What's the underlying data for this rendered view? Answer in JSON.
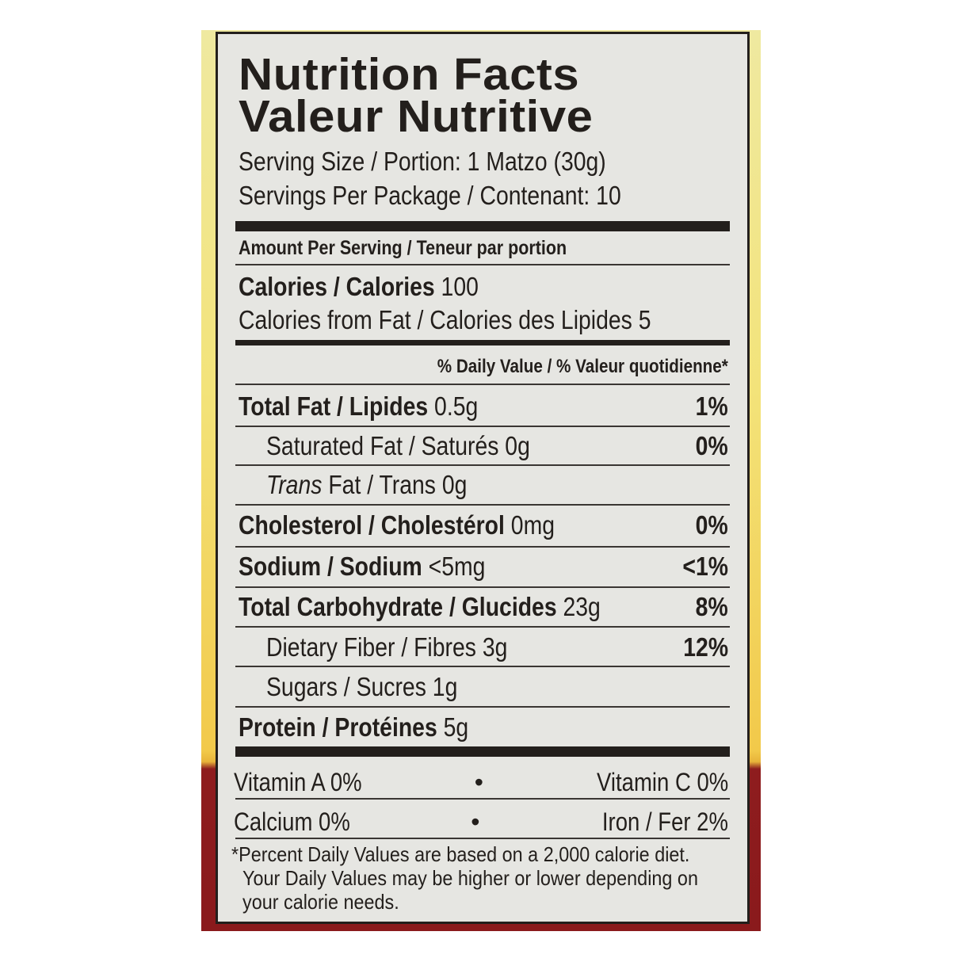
{
  "title": "Nutrition Facts",
  "title_fr": "Valeur Nutritive",
  "serving_size": "Serving Size / Portion: 1 Matzo (30g)",
  "servings_per_package": "Servings Per Package / Contenant: 10",
  "amount_per_serving": "Amount Per Serving / Teneur par portion",
  "calories": {
    "label": "Calories / Calories",
    "value": "100"
  },
  "calories_from_fat": "Calories from Fat / Calories des Lipides 5",
  "daily_value_header": "% Daily Value / % Valeur quotidienne*",
  "nutrients": [
    {
      "label": "Total Fat / Lipides",
      "amount": "0.5g",
      "dv": "1%"
    },
    {
      "label": "Saturated Fat / Saturés",
      "amount": "0g",
      "dv": "0%"
    },
    {
      "label_italic": "Trans",
      "label": "Fat / Trans",
      "amount": "0g",
      "dv": ""
    },
    {
      "label": "Cholesterol / Cholestérol",
      "amount": "0mg",
      "dv": "0%"
    },
    {
      "label": "Sodium / Sodium",
      "amount": "<5mg",
      "dv": "<1%"
    },
    {
      "label": "Total Carbohydrate / Glucides",
      "amount": "23g",
      "dv": "8%"
    },
    {
      "label": "Dietary Fiber / Fibres",
      "amount": "3g",
      "dv": "12%"
    },
    {
      "label": "Sugars / Sucres",
      "amount": "1g",
      "dv": ""
    },
    {
      "label": "Protein / Protéines",
      "amount": "5g",
      "dv": ""
    }
  ],
  "vitamins": [
    {
      "left": "Vitamin A 0%",
      "bullet": "•",
      "right": "Vitamin C 0%"
    },
    {
      "left": "Calcium 0%",
      "bullet": "•",
      "right": "Iron / Fer 2%"
    }
  ],
  "footnote": [
    "*Percent Daily Values are based on a 2,000 calorie diet.",
    "Your Daily Values may be higher or lower depending on",
    "your calorie needs."
  ],
  "colors": {
    "label_bg": "#e6e6e2",
    "ink": "#231f1c",
    "package_yellow": "#f3e37a",
    "package_red": "#8a1a1c"
  }
}
